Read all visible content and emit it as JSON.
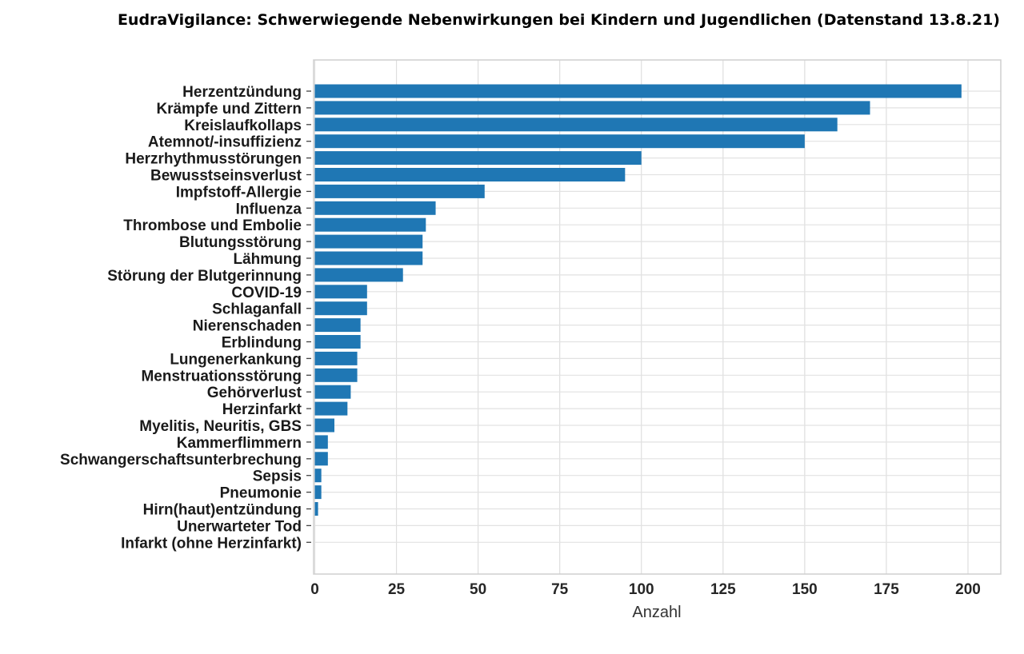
{
  "chart_data": {
    "type": "bar",
    "orientation": "horizontal",
    "title": "EudraVigilance: Schwerwiegende Nebenwirkungen bei Kindern und Jugendlichen (Datenstand 13.8.21)",
    "xlabel": "Anzahl",
    "ylabel": "",
    "xlim": [
      0,
      210
    ],
    "xticks": [
      0,
      25,
      50,
      75,
      100,
      125,
      150,
      175,
      200
    ],
    "grid": true,
    "bar_color": "#1f77b4",
    "categories": [
      "Herzentzündung",
      "Krämpfe und Zittern",
      "Kreislaufkollaps",
      "Atemnot/-insuffizienz",
      "Herzrhythmusstörungen",
      "Bewusstseinsverlust",
      "Impfstoff-Allergie",
      "Influenza",
      "Thrombose und Embolie",
      "Blutungsstörung",
      "Lähmung",
      "Störung der Blutgerinnung",
      "COVID-19",
      "Schlaganfall",
      "Nierenschaden",
      "Erblindung",
      "Lungenerkankung",
      "Menstruationsstörung",
      "Gehörverlust",
      "Herzinfarkt",
      "Myelitis, Neuritis, GBS",
      "Kammerflimmern",
      "Schwangerschaftsunterbrechung",
      "Sepsis",
      "Pneumonie",
      "Hirn(haut)entzündung",
      "Unerwarteter Tod",
      "Infarkt (ohne Herzinfarkt)"
    ],
    "values": [
      198,
      170,
      160,
      150,
      100,
      95,
      52,
      37,
      34,
      33,
      33,
      27,
      16,
      16,
      14,
      14,
      13,
      13,
      11,
      10,
      6,
      4,
      4,
      2,
      2,
      1,
      0,
      0
    ]
  }
}
